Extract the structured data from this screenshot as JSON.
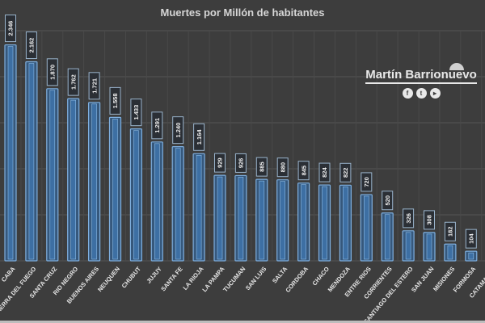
{
  "chart_data": {
    "type": "bar",
    "title": "Muertes por Millón de habitantes",
    "xlabel": "",
    "ylabel": "",
    "ylim": [
      0,
      2500
    ],
    "grid": true,
    "categories": [
      "CABA",
      "TIERRA DEL FUEGO",
      "SANTA CRUZ",
      "RIO NEGRO",
      "BUENOS AIRES",
      "NEUQUEN",
      "CHUBUT",
      "JUJUY",
      "SANTA FE",
      "LA RIOJA",
      "LA PAMPA",
      "TUCUMAN",
      "SAN LUIS",
      "SALTA",
      "CORDOBA",
      "CHACO",
      "MENDOZA",
      "ENTRE RIOS",
      "CORRIENTES",
      "SANTIAGO DEL ESTERO",
      "SAN JUAN",
      "MISIONES",
      "FORMOSA",
      "CATAMARCA"
    ],
    "values": [
      2346,
      2162,
      1870,
      1762,
      1721,
      1558,
      1433,
      1291,
      1240,
      1164,
      929,
      926,
      885,
      880,
      845,
      824,
      822,
      720,
      520,
      326,
      308,
      182,
      104,
      0
    ],
    "value_labels": [
      "2.346",
      "2.162",
      "1.870",
      "1.762",
      "1.721",
      "1.558",
      "1.433",
      "1.291",
      "1.240",
      "1.164",
      "929",
      "926",
      "885",
      "880",
      "845",
      "824",
      "822",
      "720",
      "520",
      "326",
      "308",
      "182",
      "104",
      ""
    ],
    "colors": {
      "bar": "#3d6fa3",
      "bar_edge": "#7fb0e0",
      "background": "#3d3d3d",
      "grid": "#555555"
    }
  },
  "brand": {
    "name": "Martín Barrionuevo",
    "icons": [
      "facebook-icon",
      "twitter-icon",
      "youtube-icon"
    ],
    "glyphs": [
      "f",
      "t",
      "▸"
    ]
  }
}
